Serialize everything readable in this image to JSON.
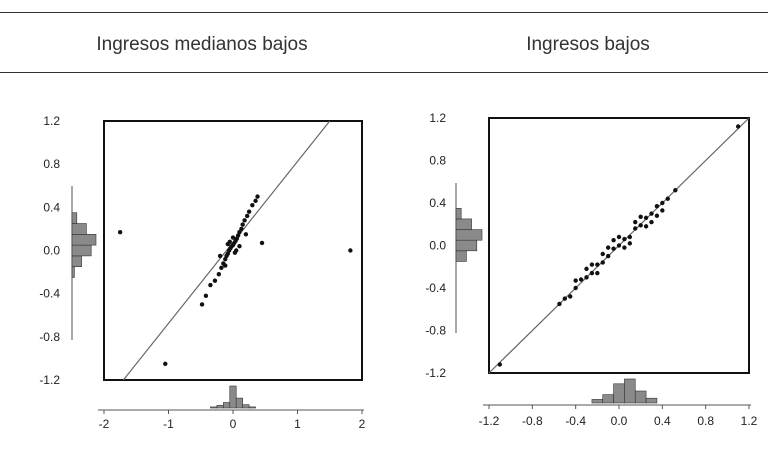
{
  "header": {
    "titles": [
      "Ingresos medianos bajos",
      "Ingresos bajos"
    ]
  },
  "chart_data": [
    {
      "type": "scatter",
      "title": "Ingresos medianos bajos",
      "xlim": [
        -2,
        2
      ],
      "ylim": [
        -1.2,
        1.2
      ],
      "x_ticks": [
        "-2",
        "-1",
        "0",
        "1",
        "2"
      ],
      "y_ticks": [
        "1.2",
        "0.8",
        "0.4",
        "0.0",
        "-0.4",
        "-0.8",
        "-1.2"
      ],
      "reference_line": {
        "x": [
          -1.7,
          1.5
        ],
        "y": [
          -1.2,
          1.2
        ]
      },
      "points": [
        [
          -1.75,
          0.17
        ],
        [
          -1.05,
          -1.05
        ],
        [
          1.82,
          0.0
        ],
        [
          0.45,
          0.07
        ],
        [
          -0.48,
          -0.5
        ],
        [
          -0.42,
          -0.42
        ],
        [
          -0.35,
          -0.32
        ],
        [
          -0.28,
          -0.28
        ],
        [
          -0.22,
          -0.22
        ],
        [
          -0.18,
          -0.16
        ],
        [
          -0.15,
          -0.12
        ],
        [
          -0.12,
          -0.08
        ],
        [
          -0.1,
          -0.05
        ],
        [
          -0.08,
          -0.03
        ],
        [
          -0.06,
          0.0
        ],
        [
          -0.04,
          0.02
        ],
        [
          -0.02,
          0.04
        ],
        [
          0.0,
          0.05
        ],
        [
          0.02,
          0.07
        ],
        [
          0.04,
          0.09
        ],
        [
          0.06,
          0.11
        ],
        [
          0.08,
          0.14
        ],
        [
          0.1,
          0.17
        ],
        [
          0.13,
          0.2
        ],
        [
          0.15,
          0.24
        ],
        [
          0.18,
          0.28
        ],
        [
          0.22,
          0.32
        ],
        [
          0.25,
          0.36
        ],
        [
          0.3,
          0.42
        ],
        [
          0.35,
          0.46
        ],
        [
          0.38,
          0.5
        ],
        [
          -0.05,
          0.08
        ],
        [
          0.05,
          0.0
        ],
        [
          -0.12,
          -0.14
        ],
        [
          0.0,
          0.12
        ],
        [
          0.1,
          0.04
        ],
        [
          -0.2,
          -0.05
        ],
        [
          0.2,
          0.15
        ],
        [
          0.03,
          -0.02
        ],
        [
          -0.08,
          0.06
        ]
      ],
      "x_histogram": [
        {
          "x": -0.3,
          "h": 0.05
        },
        {
          "x": -0.2,
          "h": 0.12
        },
        {
          "x": -0.1,
          "h": 0.25
        },
        {
          "x": 0.0,
          "h": 1.0
        },
        {
          "x": 0.1,
          "h": 0.45
        },
        {
          "x": 0.2,
          "h": 0.15
        },
        {
          "x": 0.3,
          "h": 0.05
        }
      ],
      "y_histogram": [
        {
          "y": -0.2,
          "w": 0.1
        },
        {
          "y": -0.1,
          "w": 0.4
        },
        {
          "y": 0.0,
          "w": 0.8
        },
        {
          "y": 0.1,
          "w": 1.0
        },
        {
          "y": 0.2,
          "w": 0.6
        },
        {
          "y": 0.3,
          "w": 0.2
        }
      ]
    },
    {
      "type": "scatter",
      "title": "Ingresos bajos",
      "xlim": [
        -1.2,
        1.2
      ],
      "ylim": [
        -1.2,
        1.2
      ],
      "x_ticks": [
        "-1.2",
        "-0.8",
        "-0.4",
        "0.0",
        "0.4",
        "0.8",
        "1.2"
      ],
      "y_ticks": [
        "1.2",
        "0.8",
        "0.4",
        "0.0",
        "-0.4",
        "-0.8",
        "-1.2"
      ],
      "reference_line": {
        "x": [
          -1.2,
          1.2
        ],
        "y": [
          -1.2,
          1.2
        ]
      },
      "points": [
        [
          -1.1,
          -1.12
        ],
        [
          1.1,
          1.12
        ],
        [
          -0.55,
          -0.55
        ],
        [
          -0.5,
          -0.5
        ],
        [
          -0.45,
          -0.48
        ],
        [
          -0.4,
          -0.4
        ],
        [
          -0.35,
          -0.32
        ],
        [
          -0.3,
          -0.3
        ],
        [
          -0.25,
          -0.26
        ],
        [
          -0.2,
          -0.18
        ],
        [
          -0.15,
          -0.16
        ],
        [
          -0.1,
          -0.1
        ],
        [
          -0.05,
          -0.03
        ],
        [
          0.0,
          0.0
        ],
        [
          0.05,
          0.06
        ],
        [
          0.1,
          0.08
        ],
        [
          0.15,
          0.16
        ],
        [
          0.2,
          0.19
        ],
        [
          0.25,
          0.26
        ],
        [
          0.3,
          0.3
        ],
        [
          0.35,
          0.37
        ],
        [
          0.4,
          0.4
        ],
        [
          0.45,
          0.44
        ],
        [
          0.52,
          0.52
        ],
        [
          -0.3,
          -0.22
        ],
        [
          -0.2,
          -0.26
        ],
        [
          -0.1,
          -0.02
        ],
        [
          0.0,
          0.08
        ],
        [
          0.1,
          0.02
        ],
        [
          0.2,
          0.27
        ],
        [
          0.3,
          0.22
        ],
        [
          -0.4,
          -0.33
        ],
        [
          0.05,
          -0.02
        ],
        [
          -0.05,
          0.05
        ],
        [
          0.15,
          0.22
        ],
        [
          0.25,
          0.18
        ],
        [
          -0.25,
          -0.18
        ],
        [
          0.35,
          0.28
        ],
        [
          -0.15,
          -0.08
        ],
        [
          0.4,
          0.33
        ]
      ],
      "x_histogram": [
        {
          "x": -0.2,
          "h": 0.15
        },
        {
          "x": -0.1,
          "h": 0.35
        },
        {
          "x": 0.0,
          "h": 0.8
        },
        {
          "x": 0.1,
          "h": 1.0
        },
        {
          "x": 0.2,
          "h": 0.5
        },
        {
          "x": 0.3,
          "h": 0.2
        }
      ],
      "y_histogram": [
        {
          "y": -0.1,
          "w": 0.4
        },
        {
          "y": 0.0,
          "w": 0.8
        },
        {
          "y": 0.1,
          "w": 1.0
        },
        {
          "y": 0.2,
          "w": 0.6
        },
        {
          "y": 0.3,
          "w": 0.2
        }
      ]
    }
  ]
}
